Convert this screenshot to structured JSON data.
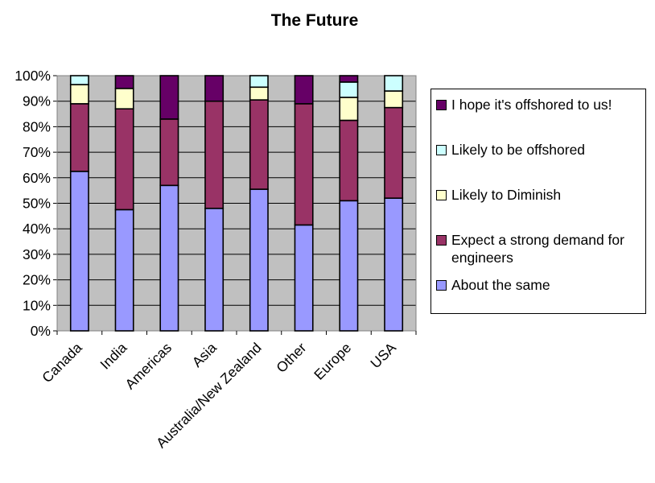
{
  "chart_data": {
    "type": "bar",
    "stacked": true,
    "percent": true,
    "title": "The Future",
    "categories": [
      "Canada",
      "India",
      "Americas",
      "Asia",
      "Australia/New Zealand",
      "Other",
      "Europe",
      "USA"
    ],
    "series": [
      {
        "name": "About the same",
        "color": "#9999ff",
        "values": [
          62.5,
          47.5,
          57,
          48,
          55.5,
          41.5,
          51,
          52
        ]
      },
      {
        "name": "Expect a strong demand for engineers",
        "color": "#993366",
        "values": [
          26.5,
          39.5,
          26,
          42,
          35,
          47.5,
          31.5,
          35.5
        ]
      },
      {
        "name": "Likely to Diminish",
        "color": "#ffffcc",
        "values": [
          7.5,
          8,
          0,
          0,
          5,
          0,
          9,
          6.5
        ]
      },
      {
        "name": "Likely to be offshored",
        "color": "#ccffff",
        "values": [
          3.5,
          0,
          0,
          0,
          4.5,
          0,
          6,
          6
        ]
      },
      {
        "name": "I hope it's offshored to us!",
        "color": "#660066",
        "values": [
          0,
          5,
          17,
          10,
          0,
          11,
          2.5,
          0
        ]
      }
    ],
    "yticks": [
      "0%",
      "10%",
      "20%",
      "30%",
      "40%",
      "50%",
      "60%",
      "70%",
      "80%",
      "90%",
      "100%"
    ],
    "ylim": [
      0,
      100
    ],
    "grid": true,
    "plot_background": "#c0c0c0",
    "legend_position": "right",
    "legend_order": [
      "I hope it's offshored to us!",
      "Likely to be offshored",
      "Likely to Diminish",
      "Expect a strong demand for engineers",
      "About the same"
    ]
  }
}
